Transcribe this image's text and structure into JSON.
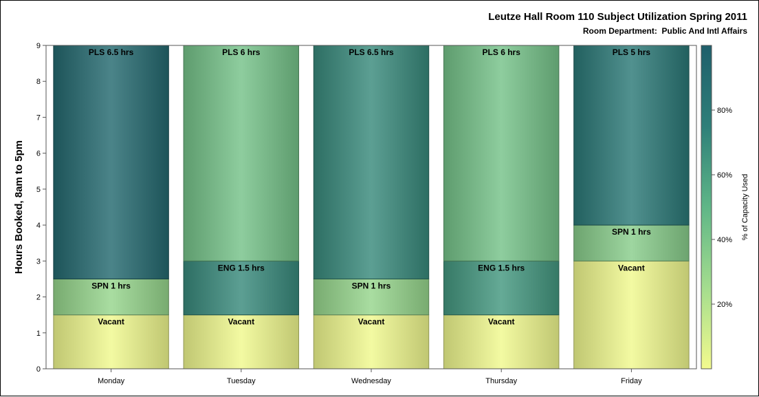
{
  "chart_data": {
    "type": "bar",
    "title": "Leutze Hall Room 110 Subject Utilization Spring 2011",
    "subtitle": "Room Department:  Public And Intl Affairs",
    "ylabel": "Hours Booked, 8am to 5pm",
    "xlabel": "",
    "ylim": [
      0,
      9
    ],
    "yticks": [
      "0",
      "1",
      "2",
      "3",
      "4",
      "5",
      "6",
      "7",
      "8",
      "9"
    ],
    "categories": [
      "Monday",
      "Tuesday",
      "Wednesday",
      "Thursday",
      "Friday"
    ],
    "stacks": [
      {
        "category": "Monday",
        "segments": [
          {
            "label": "Vacant",
            "start": 0,
            "end": 1.5,
            "pct": 1
          },
          {
            "label": "SPN 1 hrs",
            "start": 1.5,
            "end": 2.5,
            "pct": 30
          },
          {
            "label": "PLS 6.5 hrs",
            "start": 2.5,
            "end": 9,
            "pct": 92
          }
        ]
      },
      {
        "category": "Tuesday",
        "segments": [
          {
            "label": "Vacant",
            "start": 0,
            "end": 1.5,
            "pct": 1
          },
          {
            "label": "ENG 1.5 hrs",
            "start": 1.5,
            "end": 3,
            "pct": 70
          },
          {
            "label": "PLS 6 hrs",
            "start": 3,
            "end": 9,
            "pct": 42
          }
        ]
      },
      {
        "category": "Wednesday",
        "segments": [
          {
            "label": "Vacant",
            "start": 0,
            "end": 1.5,
            "pct": 1
          },
          {
            "label": "SPN 1 hrs",
            "start": 1.5,
            "end": 2.5,
            "pct": 30
          },
          {
            "label": "PLS 6.5 hrs",
            "start": 2.5,
            "end": 9,
            "pct": 70
          }
        ]
      },
      {
        "category": "Thursday",
        "segments": [
          {
            "label": "Vacant",
            "start": 0,
            "end": 1.5,
            "pct": 1
          },
          {
            "label": "ENG 1.5 hrs",
            "start": 1.5,
            "end": 3,
            "pct": 64
          },
          {
            "label": "PLS 6 hrs",
            "start": 3,
            "end": 9,
            "pct": 42
          }
        ]
      },
      {
        "category": "Friday",
        "segments": [
          {
            "label": "Vacant",
            "start": 0,
            "end": 3,
            "pct": 1
          },
          {
            "label": "SPN 1 hrs",
            "start": 3,
            "end": 4,
            "pct": 35
          },
          {
            "label": "PLS 5 hrs",
            "start": 4,
            "end": 9,
            "pct": 80
          }
        ]
      }
    ],
    "colorbar": {
      "label": "% of Capacity Used",
      "range": [
        0,
        100
      ],
      "ticks": [
        {
          "value": 20,
          "label": "20%"
        },
        {
          "value": 40,
          "label": "40%"
        },
        {
          "value": 60,
          "label": "60%"
        },
        {
          "value": 80,
          "label": "80%"
        }
      ],
      "colors": [
        "#f3fa8e",
        "#a4dd8e",
        "#5fb687",
        "#2e7f79",
        "#1f5f6b"
      ]
    },
    "grid": false,
    "legend": "right"
  }
}
